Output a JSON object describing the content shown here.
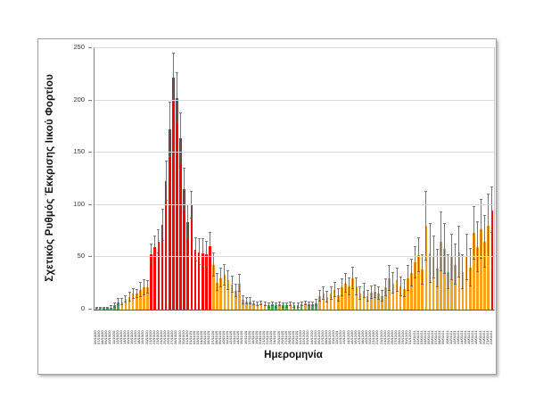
{
  "chart": {
    "y_axis_title": "Σχετικός Ρυθμός Έκκρισης Ιικού Φορτίου",
    "x_axis_title": "Ημερομηνία",
    "colors": {
      "g": "#3fae49",
      "o": "#f9a11b",
      "r": "#fe0000",
      "error": "#5f5f5f",
      "gridline": "#d9d9d9",
      "axis": "#7f7f7f"
    }
  },
  "chart_data": {
    "type": "bar",
    "title": "",
    "xlabel": "Ημερομηνία",
    "ylabel": "Σχετικός Ρυθμός Έκκρισης Ιικού Φορτίου",
    "ylim": [
      0,
      250
    ],
    "y_ticks": [
      0,
      50,
      100,
      150,
      200,
      250
    ],
    "grid": true,
    "legend": false,
    "error_bars": true,
    "categories": [
      "06/10/20",
      "07/10/20",
      "08/10/20",
      "09/10/20",
      "10/10/20",
      "11/10/20",
      "12/10/20",
      "13/10/20",
      "14/10/20",
      "15/10/20",
      "16/10/20",
      "17/10/20",
      "18/10/20",
      "19/10/20",
      "20/10/20",
      "21/10/20",
      "22/10/20",
      "23/10/20",
      "24/10/20",
      "25/10/20",
      "26/10/20",
      "27/10/20",
      "28/10/20",
      "29/10/20",
      "30/10/20",
      "31/10/20",
      "01/11/20",
      "02/11/20",
      "03/11/20",
      "04/11/20",
      "05/11/20",
      "06/11/20",
      "07/11/20",
      "08/11/20",
      "09/11/20",
      "10/11/20",
      "11/11/20",
      "12/11/20",
      "13/11/20",
      "14/11/20",
      "15/11/20",
      "16/11/20",
      "17/11/20",
      "18/11/20",
      "19/11/20",
      "20/11/20",
      "21/11/20",
      "22/11/20",
      "23/11/20",
      "24/11/20",
      "25/11/20",
      "26/11/20",
      "27/11/20",
      "28/11/20",
      "29/11/20",
      "30/11/20",
      "01/12/20",
      "02/12/20",
      "03/12/20",
      "04/12/20",
      "05/12/20",
      "06/12/20",
      "07/12/20",
      "08/12/20",
      "09/12/20",
      "10/12/20",
      "11/12/20",
      "12/12/20",
      "13/12/20",
      "14/12/20",
      "15/12/20",
      "16/12/20",
      "17/12/20",
      "18/12/20",
      "19/12/20",
      "20/12/20",
      "21/12/20",
      "22/12/20",
      "23/12/20",
      "24/12/20",
      "25/12/20",
      "26/12/20",
      "27/12/20",
      "28/12/20",
      "29/12/20",
      "30/12/20",
      "31/12/20",
      "01/01/21",
      "02/01/21",
      "03/01/21",
      "04/01/21",
      "05/01/21",
      "06/01/21",
      "07/01/21",
      "08/01/21",
      "09/01/21",
      "10/01/21",
      "11/01/21",
      "12/01/21",
      "13/01/21",
      "14/01/21",
      "15/01/21",
      "16/01/21",
      "17/01/21",
      "18/01/21",
      "19/01/21",
      "20/01/21",
      "21/01/21",
      "22/01/21"
    ],
    "values": [
      1,
      1,
      1,
      1,
      2,
      4,
      7,
      7,
      10,
      12,
      15,
      15,
      19,
      21,
      21,
      53,
      60,
      65,
      81,
      123,
      172,
      222,
      202,
      164,
      115,
      84,
      100,
      57,
      55,
      54,
      53,
      61,
      43,
      26,
      30,
      33,
      28,
      24,
      18,
      25,
      9,
      8,
      8,
      6,
      5,
      6,
      5,
      4,
      5,
      4,
      5,
      4,
      4,
      5,
      4,
      4,
      5,
      6,
      5,
      5,
      6,
      13,
      15,
      12,
      15,
      19,
      14,
      21,
      25,
      22,
      30,
      22,
      15,
      18,
      13,
      16,
      17,
      15,
      13,
      21,
      30,
      25,
      28,
      22,
      20,
      30,
      35,
      45,
      52,
      38,
      80,
      54,
      50,
      39,
      65,
      58,
      36,
      50,
      43,
      55,
      36,
      50,
      40,
      73,
      60,
      77,
      65,
      80,
      95
    ],
    "errors": [
      0.5,
      0.5,
      0.5,
      0.5,
      1,
      2,
      3,
      3,
      3,
      4,
      5,
      4,
      7,
      7,
      6,
      9,
      10,
      11,
      15,
      19,
      26,
      23,
      24,
      24,
      20,
      16,
      13,
      11,
      12,
      13,
      12,
      12,
      11,
      8,
      9,
      10,
      9,
      8,
      6,
      8,
      4,
      3,
      3,
      2,
      2,
      2,
      2,
      2,
      2,
      2,
      2,
      2,
      2,
      2,
      2,
      2,
      2,
      2,
      2,
      2,
      3,
      5,
      6,
      5,
      6,
      7,
      6,
      8,
      9,
      8,
      10,
      8,
      6,
      7,
      5,
      6,
      6,
      6,
      5,
      8,
      12,
      10,
      11,
      9,
      8,
      12,
      13,
      15,
      16,
      14,
      33,
      28,
      20,
      18,
      28,
      24,
      16,
      22,
      19,
      24,
      16,
      22,
      18,
      25,
      24,
      28,
      25,
      30,
      22
    ],
    "bar_colors": [
      "g",
      "g",
      "g",
      "g",
      "g",
      "g",
      "g",
      "o",
      "o",
      "o",
      "o",
      "o",
      "o",
      "o",
      "o",
      "r",
      "r",
      "r",
      "r",
      "r",
      "r",
      "r",
      "r",
      "r",
      "r",
      "r",
      "r",
      "r",
      "r",
      "r",
      "r",
      "r",
      "o",
      "o",
      "o",
      "o",
      "o",
      "o",
      "o",
      "o",
      "o",
      "o",
      "o",
      "o",
      "o",
      "o",
      "o",
      "g",
      "g",
      "g",
      "o",
      "g",
      "g",
      "o",
      "g",
      "g",
      "g",
      "o",
      "g",
      "g",
      "g",
      "o",
      "o",
      "o",
      "o",
      "o",
      "o",
      "o",
      "o",
      "o",
      "o",
      "o",
      "o",
      "o",
      "o",
      "o",
      "o",
      "o",
      "o",
      "o",
      "o",
      "o",
      "o",
      "o",
      "o",
      "o",
      "o",
      "o",
      "o",
      "o",
      "o",
      "o",
      "o",
      "o",
      "o",
      "o",
      "o",
      "o",
      "o",
      "o",
      "o",
      "o",
      "o",
      "o",
      "o",
      "o",
      "o",
      "o",
      "r"
    ]
  }
}
